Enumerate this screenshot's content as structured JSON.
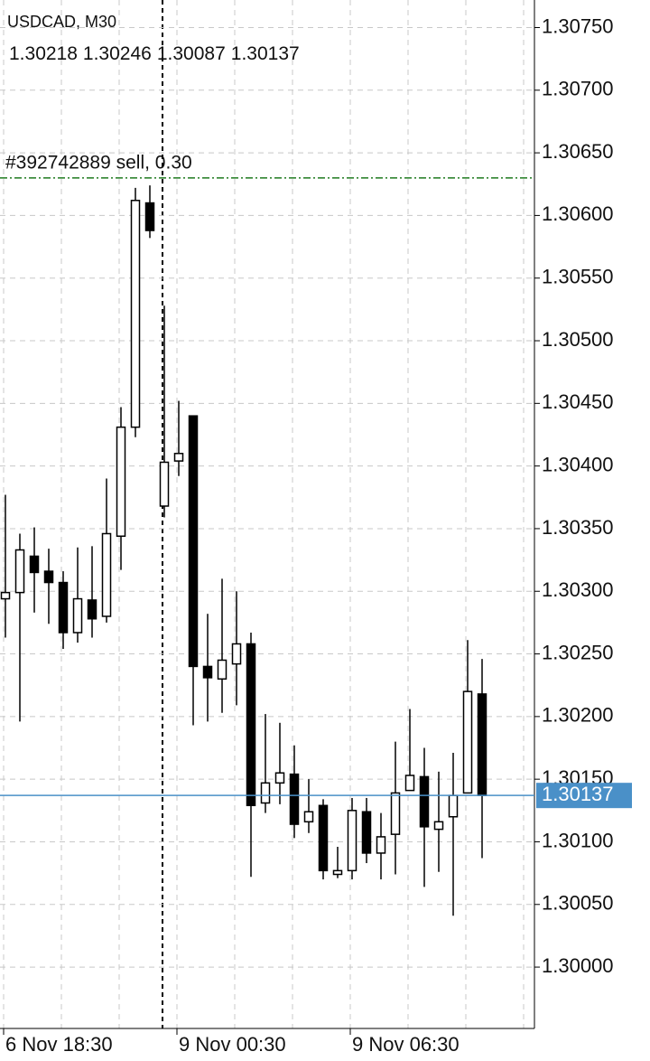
{
  "chart_data": {
    "type": "candlestick",
    "title": "USDCAD, M30",
    "categories": [
      "6 Nov 18:30",
      null,
      null,
      null,
      null,
      null,
      null,
      null,
      null,
      null,
      null,
      null,
      "9 Nov 00:30",
      null,
      null,
      null,
      null,
      null,
      null,
      null,
      null,
      null,
      null,
      null,
      "9 Nov 06:30",
      null,
      null,
      null,
      null,
      null,
      null,
      null,
      null,
      null
    ],
    "open": [
      1.30294,
      1.30299,
      1.30328,
      1.30316,
      1.30307,
      1.30267,
      1.30293,
      1.3028,
      1.30344,
      1.30431,
      1.3061,
      1.30368,
      1.30404,
      1.3044,
      1.3024,
      1.3023,
      1.30242,
      1.30258,
      1.30131,
      1.30147,
      1.30154,
      1.30116,
      1.30129,
      1.30074,
      1.30077,
      1.30124,
      1.30091,
      1.30106,
      1.30141,
      1.30152,
      1.3011,
      1.3012,
      1.30139,
      1.30218
    ],
    "high": [
      1.30377,
      1.30346,
      1.30351,
      1.30334,
      1.30316,
      1.30335,
      1.30336,
      1.3039,
      1.30447,
      1.30622,
      1.30624,
      1.30528,
      1.30452,
      1.3044,
      1.30282,
      1.3031,
      1.303,
      1.30267,
      1.30202,
      1.30195,
      1.30177,
      1.3015,
      1.30134,
      1.30096,
      1.30135,
      1.30135,
      1.30123,
      1.3018,
      1.30206,
      1.30175,
      1.30156,
      1.30171,
      1.30261,
      1.30246
    ],
    "low": [
      1.30263,
      1.30196,
      1.30283,
      1.30274,
      1.30254,
      1.30259,
      1.30263,
      1.30275,
      1.30317,
      1.30423,
      1.30582,
      1.30359,
      1.30392,
      1.30193,
      1.30196,
      1.30203,
      1.30209,
      1.30072,
      1.30123,
      1.3013,
      1.30103,
      1.30107,
      1.3007,
      1.30071,
      1.3007,
      1.30083,
      1.3007,
      1.30074,
      1.30141,
      1.30064,
      1.30076,
      1.30041,
      1.30139,
      1.30087
    ],
    "close": [
      1.30299,
      1.30333,
      1.30315,
      1.30307,
      1.30267,
      1.30294,
      1.30278,
      1.30346,
      1.30431,
      1.30612,
      1.30588,
      1.30403,
      1.3041,
      1.3024,
      1.30231,
      1.30245,
      1.30258,
      1.30129,
      1.30147,
      1.30155,
      1.30114,
      1.30124,
      1.30077,
      1.30077,
      1.30125,
      1.30091,
      1.30104,
      1.30139,
      1.30153,
      1.30112,
      1.30116,
      1.30137,
      1.3022,
      1.30137
    ],
    "up_color": "#ffffff",
    "down_color": "#000000",
    "ylim": [
      1.29951,
      1.30772
    ],
    "yticks": [
      {
        "value": 1.3,
        "label": "1.30000"
      },
      {
        "value": 1.3005,
        "label": "1.30050"
      },
      {
        "value": 1.301,
        "label": "1.30100"
      },
      {
        "value": 1.3015,
        "label": "1.30150"
      },
      {
        "value": 1.302,
        "label": "1.30200"
      },
      {
        "value": 1.3025,
        "label": "1.30250"
      },
      {
        "value": 1.303,
        "label": "1.30300"
      },
      {
        "value": 1.3035,
        "label": "1.30350"
      },
      {
        "value": 1.304,
        "label": "1.30400"
      },
      {
        "value": 1.3045,
        "label": "1.30450"
      },
      {
        "value": 1.305,
        "label": "1.30500"
      },
      {
        "value": 1.3055,
        "label": "1.30550"
      },
      {
        "value": 1.306,
        "label": "1.30600"
      },
      {
        "value": 1.3065,
        "label": "1.30650"
      },
      {
        "value": 1.307,
        "label": "1.30700"
      },
      {
        "value": 1.3075,
        "label": "1.30750"
      }
    ],
    "grid": true,
    "order_line": {
      "label": "#392742889 sell, 0.30",
      "value": 1.3063,
      "color": "#1e7a1e"
    },
    "price_line": {
      "value": 1.30137,
      "color": "#4a90c8"
    }
  }
}
